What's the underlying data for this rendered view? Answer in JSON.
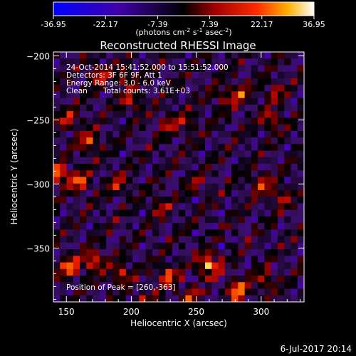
{
  "title": "Reconstructed RHESSI Image",
  "colorbar": {
    "ticks": [
      "-36.95",
      "-22.17",
      "-7.39",
      "7.39",
      "22.17",
      "36.95"
    ],
    "tick_values": [
      -36.95,
      -22.17,
      -7.39,
      7.39,
      22.17,
      36.95
    ],
    "min": -36.95,
    "max": 36.95,
    "unit_prefix": "(photons cm",
    "unit_exp1": "-2",
    "unit_mid1": " s",
    "unit_exp2": "-1",
    "unit_mid2": " asec",
    "unit_exp3": "-2",
    "unit_suffix": ")"
  },
  "info": {
    "time_range": "24-Oct-2014 15:41:52.000 to 15:51:52.000",
    "detectors": "Detectors: 3F 6F 9F, Att 1",
    "energy": "Energy Range: 3.0 - 6.0 keV",
    "algorithm": "Clean",
    "counts": "Total counts: 3.61E+03"
  },
  "peak_label": "Position of Peak = [260,-363]",
  "footer_date": "6-Jul-2017 20:14",
  "chart_data": {
    "type": "heatmap",
    "title": "Reconstructed RHESSI Image",
    "xlabel": "Heliocentric X (arcsec)",
    "ylabel": "Heliocentric Y (arcsec)",
    "xlim": [
      140,
      333
    ],
    "ylim": [
      -392,
      -197
    ],
    "x_ticks": [
      150,
      200,
      250,
      300
    ],
    "y_ticks": [
      -200,
      -250,
      -300,
      -350
    ],
    "x_tick_labels": [
      "150",
      "200",
      "250",
      "300"
    ],
    "y_tick_labels": [
      "−200",
      "−250",
      "−300",
      "−350"
    ],
    "value_range": [
      -36.95,
      36.95
    ],
    "peak": {
      "x": 260,
      "y": -363
    },
    "hotspots": [
      {
        "x": 175,
        "y": -215,
        "value": 20
      },
      {
        "x": 195,
        "y": -217,
        "value": 16
      },
      {
        "x": 200,
        "y": -235,
        "value": 17
      },
      {
        "x": 152,
        "y": -250,
        "value": 18
      },
      {
        "x": 167,
        "y": -267,
        "value": 22
      },
      {
        "x": 144,
        "y": -292,
        "value": 30
      },
      {
        "x": 160,
        "y": -298,
        "value": 25
      },
      {
        "x": 190,
        "y": -300,
        "value": 16
      },
      {
        "x": 228,
        "y": -253,
        "value": 15
      },
      {
        "x": 243,
        "y": -252,
        "value": 12
      },
      {
        "x": 270,
        "y": -233,
        "value": 12
      },
      {
        "x": 283,
        "y": -230,
        "value": 20
      },
      {
        "x": 310,
        "y": -228,
        "value": 15
      },
      {
        "x": 308,
        "y": -250,
        "value": 18
      },
      {
        "x": 300,
        "y": -300,
        "value": 20
      },
      {
        "x": 315,
        "y": -310,
        "value": 16
      },
      {
        "x": 222,
        "y": -318,
        "value": 14
      },
      {
        "x": 250,
        "y": -300,
        "value": 10
      },
      {
        "x": 153,
        "y": -365,
        "value": 28
      },
      {
        "x": 171,
        "y": -360,
        "value": 25
      },
      {
        "x": 192,
        "y": -370,
        "value": 20
      },
      {
        "x": 228,
        "y": -372,
        "value": 24
      },
      {
        "x": 260,
        "y": -363,
        "value": 36.95
      },
      {
        "x": 282,
        "y": -383,
        "value": 30
      },
      {
        "x": 303,
        "y": -375,
        "value": 16
      },
      {
        "x": 210,
        "y": -392,
        "value": 15
      },
      {
        "x": 245,
        "y": -388,
        "value": 18
      }
    ]
  }
}
